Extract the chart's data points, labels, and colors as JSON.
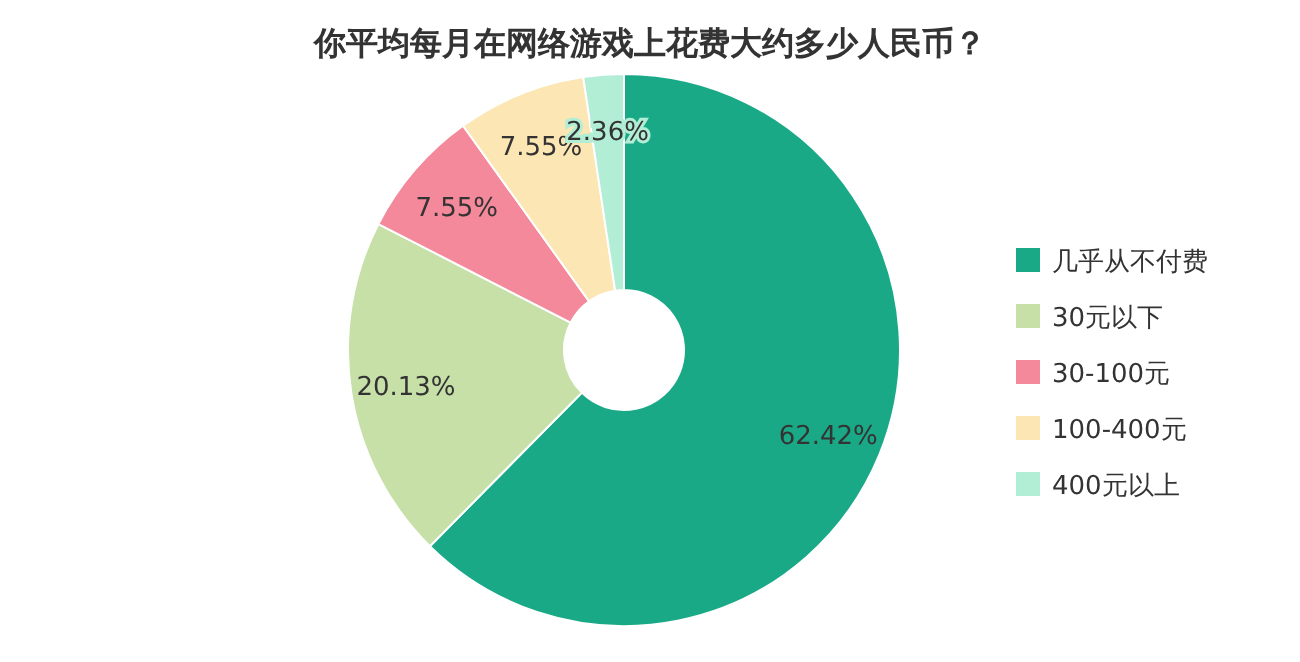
{
  "chart_data": {
    "type": "donut",
    "title": "你平均每月在网络游戏上花费大约多少人民币？",
    "categories": [
      "几乎从不付费",
      "30元以下",
      "30-100元",
      "100-400元",
      "400元以上"
    ],
    "values": [
      62.42,
      20.13,
      7.55,
      7.55,
      2.36
    ],
    "colors": [
      "#1aa987",
      "#c6e0a8",
      "#f3899a",
      "#fbe6b4",
      "#b2edd6"
    ],
    "value_labels": [
      "62.42%",
      "20.13%",
      "7.55%",
      "7.55%",
      "2.36%"
    ],
    "legend": "right"
  }
}
